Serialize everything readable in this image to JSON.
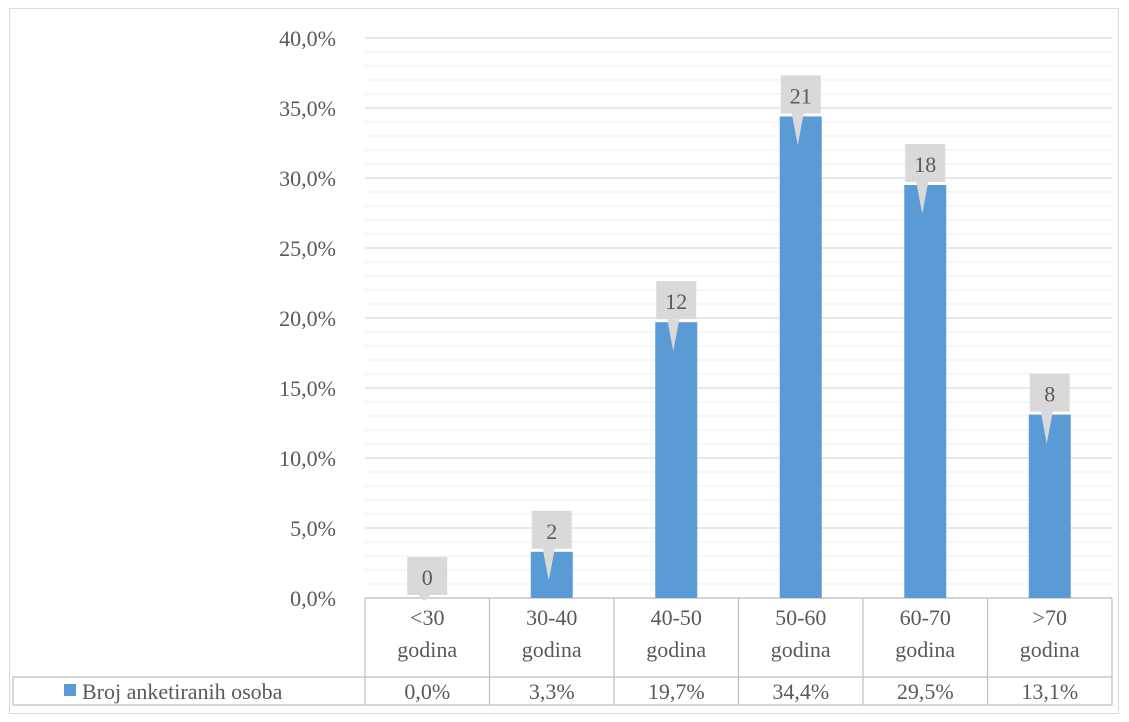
{
  "chart_data": {
    "type": "bar",
    "categories": [
      [
        "<30",
        "godina"
      ],
      [
        "30-40",
        "godina"
      ],
      [
        "40-50",
        "godina"
      ],
      [
        "50-60",
        "godina"
      ],
      [
        "60-70",
        "godina"
      ],
      [
        ">70",
        "godina"
      ]
    ],
    "series": [
      {
        "name": "Broj anketiranih osoba",
        "values": [
          0.0,
          3.3,
          19.7,
          34.4,
          29.5,
          13.1
        ],
        "value_labels": [
          "0,0%",
          "3,3%",
          "19,7%",
          "34,4%",
          "29,5%",
          "13,1%"
        ],
        "data_labels": [
          "0",
          "2",
          "12",
          "21",
          "18",
          "8"
        ],
        "color": "#5b9bd5"
      }
    ],
    "ylim": [
      0,
      40
    ],
    "yticks": [
      0,
      5,
      10,
      15,
      20,
      25,
      30,
      35,
      40
    ],
    "ytick_labels": [
      "0,0%",
      "5,0%",
      "10,0%",
      "15,0%",
      "20,0%",
      "25,0%",
      "30,0%",
      "35,0%",
      "40,0%"
    ],
    "grid": true,
    "legend": "data-table",
    "colors": {
      "bar": "#5b9bd5",
      "label_box": "#d9d9d9",
      "grid": "#d9d9d9",
      "text": "#595959"
    }
  }
}
